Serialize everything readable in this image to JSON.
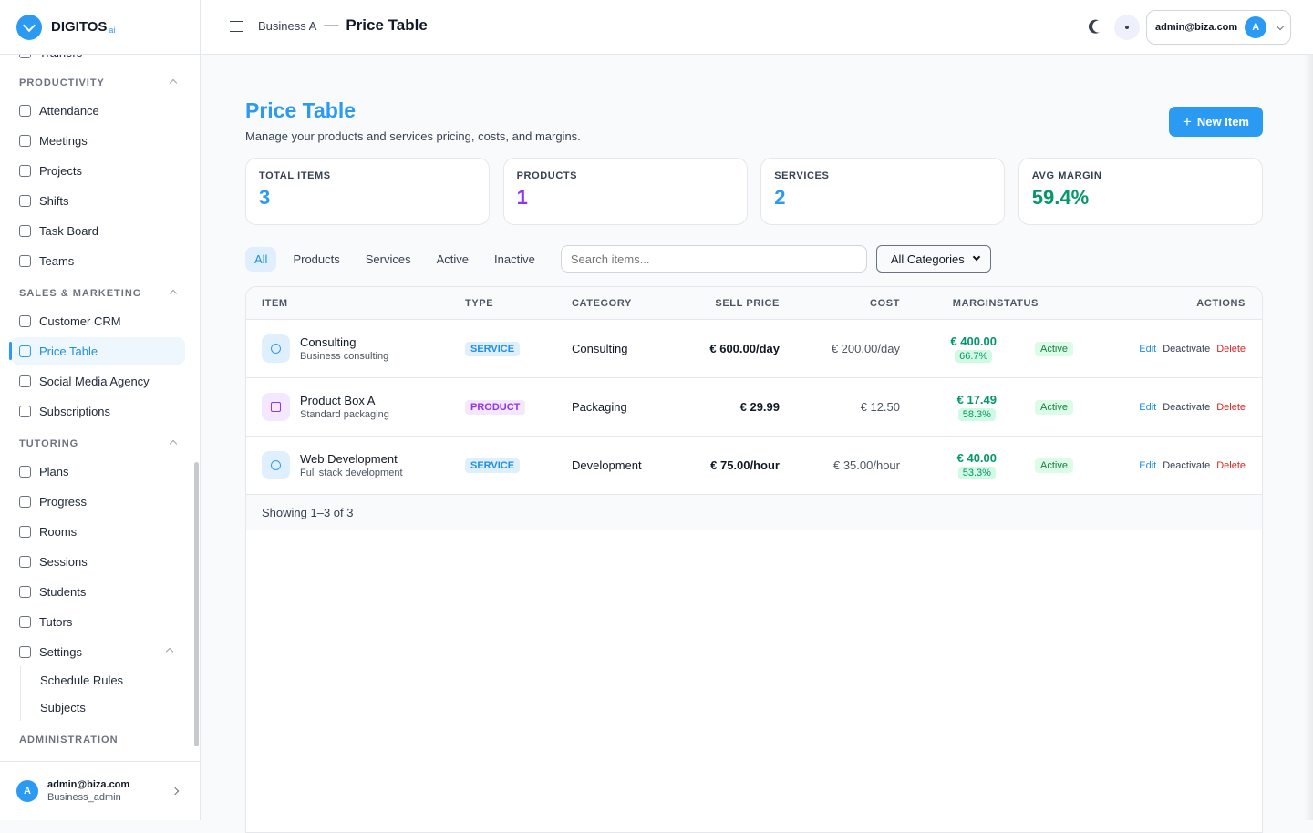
{
  "brand": {
    "name": "DIGITOS",
    "suffix": "ai"
  },
  "sidebar": {
    "partial_item": "Trainers",
    "sections": [
      {
        "title": "PRODUCTIVITY",
        "items": [
          "Attendance",
          "Meetings",
          "Projects",
          "Shifts",
          "Task Board",
          "Teams"
        ]
      },
      {
        "title": "SALES & MARKETING",
        "items": [
          "Customer CRM",
          "Price Table",
          "Social Media Agency",
          "Subscriptions"
        ]
      },
      {
        "title": "TUTORING",
        "items": [
          "Plans",
          "Progress",
          "Rooms",
          "Sessions",
          "Students",
          "Tutors",
          "Settings"
        ],
        "children": [
          "Schedule Rules",
          "Subjects"
        ]
      },
      {
        "title": "ADMINISTRATION",
        "items": []
      }
    ],
    "active": "Price Table",
    "user": {
      "initial": "A",
      "email": "admin@biza.com",
      "role": "Business_admin"
    }
  },
  "topbar": {
    "breadcrumb": "Business A",
    "separator": "—",
    "title": "Price Table",
    "email": "admin@biza.com",
    "initial": "A"
  },
  "page": {
    "title": "Price Table",
    "subtitle": "Manage your products and services pricing, costs, and margins.",
    "new_button": "New Item"
  },
  "stats": [
    {
      "label": "TOTAL ITEMS",
      "value": "3"
    },
    {
      "label": "PRODUCTS",
      "value": "1"
    },
    {
      "label": "SERVICES",
      "value": "2"
    },
    {
      "label": "AVG MARGIN",
      "value": "59.4%"
    }
  ],
  "filters": {
    "tabs": [
      "All",
      "Products",
      "Services",
      "Active",
      "Inactive"
    ],
    "search_placeholder": "Search items...",
    "category": "All Categories"
  },
  "table": {
    "columns": [
      "ITEM",
      "TYPE",
      "CATEGORY",
      "SELL PRICE",
      "COST",
      "MARGIN",
      "STATUS",
      "ACTIONS"
    ],
    "rows": [
      {
        "name": "Consulting",
        "description": "Business consulting",
        "type": "SERVICE",
        "category": "Consulting",
        "sell_price": "€ 600.00/day",
        "cost": "€ 200.00/day",
        "margin": "€ 400.00",
        "margin_pct": "66.7%",
        "status": "Active",
        "actions": [
          "Edit",
          "Deactivate",
          "Delete"
        ]
      },
      {
        "name": "Product Box A",
        "description": "Standard packaging",
        "type": "PRODUCT",
        "category": "Packaging",
        "sell_price": "€ 29.99",
        "cost": "€ 12.50",
        "margin": "€ 17.49",
        "margin_pct": "58.3%",
        "status": "Active",
        "actions": [
          "Edit",
          "Deactivate",
          "Delete"
        ]
      },
      {
        "name": "Web Development",
        "description": "Full stack development",
        "type": "SERVICE",
        "category": "Development",
        "sell_price": "€ 75.00/hour",
        "cost": "€ 35.00/hour",
        "margin": "€ 40.00",
        "margin_pct": "53.3%",
        "status": "Active",
        "actions": [
          "Edit",
          "Deactivate",
          "Delete"
        ]
      }
    ],
    "footer": "Showing 1–3 of 3"
  }
}
